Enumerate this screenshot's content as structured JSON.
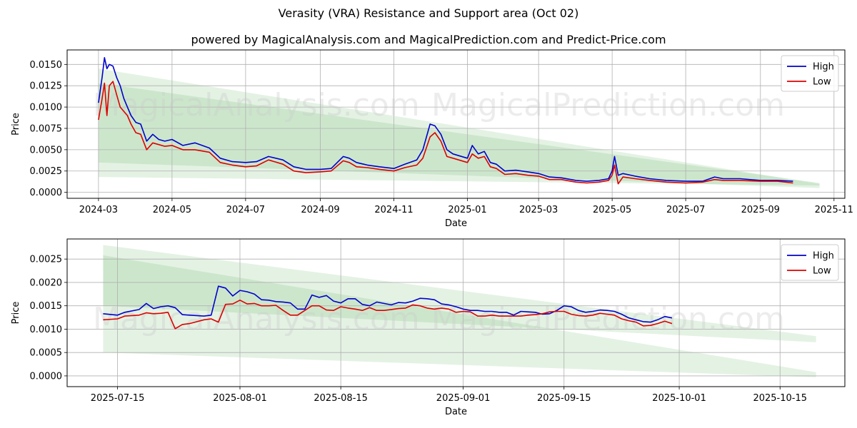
{
  "title": "Verasity (VRA) Resistance and Support area (Oct 02)",
  "subtitle": "powered by MagicalAnalysis.com and MagicalPrediction.com and Predict-Price.com",
  "watermarks": [
    "MagicalAnalysis.com",
    "MagicalPrediction.com"
  ],
  "colors": {
    "high": "#0000cc",
    "low": "#dd0000",
    "band": "#2e9b2e",
    "grid": "#b0b0b0"
  },
  "chart_data": [
    {
      "type": "line",
      "xlabel": "Date",
      "ylabel": "Price",
      "legend_position": "top-right",
      "grid": true,
      "xlim": [
        "2024-02-04",
        "2025-11-10"
      ],
      "ylim": [
        -0.0007,
        0.0167
      ],
      "x_ticks": [
        "2024-03",
        "2024-05",
        "2024-07",
        "2024-09",
        "2024-11",
        "2025-01",
        "2025-03",
        "2025-05",
        "2025-07",
        "2025-09",
        "2025-11"
      ],
      "x_tick_dates": [
        "2024-03-01",
        "2024-05-01",
        "2024-07-01",
        "2024-09-01",
        "2024-11-01",
        "2025-01-01",
        "2025-03-01",
        "2025-05-01",
        "2025-07-01",
        "2025-09-01",
        "2025-11-01"
      ],
      "y_ticks": [
        "0.0000",
        "0.0025",
        "0.0050",
        "0.0075",
        "0.0100",
        "0.0125",
        "0.0150"
      ],
      "y_tick_values": [
        0,
        0.0025,
        0.005,
        0.0075,
        0.01,
        0.0125,
        0.015
      ],
      "bands": [
        {
          "x": [
            "2024-03-01",
            "2025-10-20"
          ],
          "upper": [
            0.0145,
            0.001
          ],
          "lower": [
            0.0035,
            0.0005
          ]
        },
        {
          "x": [
            "2024-03-01",
            "2025-10-20"
          ],
          "upper": [
            0.0128,
            0.0011
          ],
          "lower": [
            0.0018,
            0.0008
          ]
        }
      ],
      "series": [
        {
          "name": "High",
          "x": [
            "2024-03-01",
            "2024-03-04",
            "2024-03-06",
            "2024-03-08",
            "2024-03-10",
            "2024-03-13",
            "2024-03-16",
            "2024-03-19",
            "2024-03-22",
            "2024-03-25",
            "2024-03-28",
            "2024-04-01",
            "2024-04-05",
            "2024-04-10",
            "2024-04-15",
            "2024-04-20",
            "2024-04-25",
            "2024-05-01",
            "2024-05-10",
            "2024-05-20",
            "2024-06-01",
            "2024-06-10",
            "2024-06-20",
            "2024-07-01",
            "2024-07-10",
            "2024-07-20",
            "2024-08-01",
            "2024-08-10",
            "2024-08-20",
            "2024-09-01",
            "2024-09-10",
            "2024-09-20",
            "2024-09-25",
            "2024-10-01",
            "2024-10-10",
            "2024-10-20",
            "2024-11-01",
            "2024-11-10",
            "2024-11-20",
            "2024-11-25",
            "2024-12-01",
            "2024-12-05",
            "2024-12-10",
            "2024-12-15",
            "2024-12-20",
            "2025-01-01",
            "2025-01-05",
            "2025-01-10",
            "2025-01-15",
            "2025-01-20",
            "2025-01-25",
            "2025-02-01",
            "2025-02-10",
            "2025-02-20",
            "2025-03-01",
            "2025-03-10",
            "2025-03-20",
            "2025-04-01",
            "2025-04-10",
            "2025-04-20",
            "2025-04-28",
            "2025-05-01",
            "2025-05-03",
            "2025-05-06",
            "2025-05-10",
            "2025-05-20",
            "2025-06-01",
            "2025-06-15",
            "2025-07-01",
            "2025-07-15",
            "2025-07-25",
            "2025-08-01",
            "2025-08-15",
            "2025-09-01",
            "2025-09-15",
            "2025-09-28"
          ],
          "values": [
            0.0105,
            0.0135,
            0.0158,
            0.0145,
            0.015,
            0.0148,
            0.0135,
            0.0125,
            0.011,
            0.01,
            0.009,
            0.0082,
            0.008,
            0.006,
            0.0068,
            0.0062,
            0.006,
            0.0062,
            0.0055,
            0.0058,
            0.0052,
            0.004,
            0.0036,
            0.0035,
            0.0036,
            0.0042,
            0.0038,
            0.003,
            0.0027,
            0.0027,
            0.0028,
            0.0042,
            0.004,
            0.0035,
            0.0032,
            0.003,
            0.0028,
            0.0033,
            0.0038,
            0.005,
            0.008,
            0.0078,
            0.0068,
            0.005,
            0.0045,
            0.004,
            0.0055,
            0.0045,
            0.0048,
            0.0035,
            0.0033,
            0.0025,
            0.0026,
            0.0024,
            0.0022,
            0.0018,
            0.0017,
            0.0014,
            0.0013,
            0.0014,
            0.0016,
            0.0025,
            0.0042,
            0.002,
            0.0022,
            0.0019,
            0.0016,
            0.0014,
            0.0013,
            0.0013,
            0.0018,
            0.0016,
            0.0016,
            0.0014,
            0.0014,
            0.0013
          ]
        },
        {
          "name": "Low",
          "x": [
            "2024-03-01",
            "2024-03-04",
            "2024-03-06",
            "2024-03-08",
            "2024-03-10",
            "2024-03-13",
            "2024-03-16",
            "2024-03-19",
            "2024-03-22",
            "2024-03-25",
            "2024-03-28",
            "2024-04-01",
            "2024-04-05",
            "2024-04-10",
            "2024-04-15",
            "2024-04-20",
            "2024-04-25",
            "2024-05-01",
            "2024-05-10",
            "2024-05-20",
            "2024-06-01",
            "2024-06-10",
            "2024-06-20",
            "2024-07-01",
            "2024-07-10",
            "2024-07-20",
            "2024-08-01",
            "2024-08-10",
            "2024-08-20",
            "2024-09-01",
            "2024-09-10",
            "2024-09-20",
            "2024-09-25",
            "2024-10-01",
            "2024-10-10",
            "2024-10-20",
            "2024-11-01",
            "2024-11-10",
            "2024-11-20",
            "2024-11-25",
            "2024-12-01",
            "2024-12-05",
            "2024-12-10",
            "2024-12-15",
            "2024-12-20",
            "2025-01-01",
            "2025-01-05",
            "2025-01-10",
            "2025-01-15",
            "2025-01-20",
            "2025-01-25",
            "2025-02-01",
            "2025-02-10",
            "2025-02-20",
            "2025-03-01",
            "2025-03-10",
            "2025-03-20",
            "2025-04-01",
            "2025-04-10",
            "2025-04-20",
            "2025-04-28",
            "2025-05-01",
            "2025-05-03",
            "2025-05-06",
            "2025-05-10",
            "2025-05-20",
            "2025-06-01",
            "2025-06-15",
            "2025-07-01",
            "2025-07-15",
            "2025-07-25",
            "2025-08-01",
            "2025-08-15",
            "2025-09-01",
            "2025-09-15",
            "2025-09-28"
          ],
          "values": [
            0.0085,
            0.011,
            0.0128,
            0.009,
            0.0125,
            0.013,
            0.0115,
            0.01,
            0.0095,
            0.009,
            0.008,
            0.007,
            0.0068,
            0.005,
            0.0058,
            0.0056,
            0.0054,
            0.0055,
            0.005,
            0.005,
            0.0047,
            0.0035,
            0.0032,
            0.003,
            0.0031,
            0.0038,
            0.0033,
            0.0025,
            0.0023,
            0.0024,
            0.0025,
            0.0037,
            0.0035,
            0.003,
            0.0029,
            0.0027,
            0.0025,
            0.0029,
            0.0032,
            0.004,
            0.0065,
            0.007,
            0.006,
            0.0042,
            0.004,
            0.0035,
            0.0045,
            0.004,
            0.0042,
            0.003,
            0.0028,
            0.0021,
            0.0022,
            0.002,
            0.0019,
            0.0015,
            0.0015,
            0.0012,
            0.0011,
            0.0012,
            0.0014,
            0.002,
            0.0032,
            0.001,
            0.0018,
            0.0016,
            0.0014,
            0.0012,
            0.0011,
            0.0012,
            0.0015,
            0.0014,
            0.0014,
            0.0013,
            0.0013,
            0.0011
          ]
        }
      ]
    },
    {
      "type": "line",
      "xlabel": "Date",
      "ylabel": "Price",
      "legend_position": "top-right",
      "grid": true,
      "xlim": [
        "2025-07-08",
        "2025-10-24"
      ],
      "ylim": [
        -0.00023,
        0.00293
      ],
      "x_ticks": [
        "2025-07-15",
        "2025-08-01",
        "2025-08-15",
        "2025-09-01",
        "2025-09-15",
        "2025-10-01",
        "2025-10-15"
      ],
      "x_tick_dates": [
        "2025-07-15",
        "2025-08-01",
        "2025-08-15",
        "2025-09-01",
        "2025-09-15",
        "2025-10-01",
        "2025-10-15"
      ],
      "y_ticks": [
        "0.0000",
        "0.0005",
        "0.0010",
        "0.0015",
        "0.0020",
        "0.0025"
      ],
      "y_tick_values": [
        0,
        0.0005,
        0.001,
        0.0015,
        0.002,
        0.0025
      ],
      "bands": [
        {
          "x": [
            "2025-07-13",
            "2025-10-20"
          ],
          "upper": [
            0.0028,
            0.00085
          ],
          "lower": [
            0.0015,
            0.00072
          ]
        },
        {
          "x": [
            "2025-07-13",
            "2025-10-20"
          ],
          "upper": [
            0.00258,
            8e-05
          ],
          "lower": [
            0.0005,
            -3e-05
          ]
        }
      ],
      "series": [
        {
          "name": "High",
          "x": [
            "2025-07-13",
            "2025-07-15",
            "2025-07-16",
            "2025-07-18",
            "2025-07-19",
            "2025-07-20",
            "2025-07-21",
            "2025-07-22",
            "2025-07-23",
            "2025-07-24",
            "2025-07-25",
            "2025-07-27",
            "2025-07-28",
            "2025-07-29",
            "2025-07-30",
            "2025-07-31",
            "2025-08-01",
            "2025-08-02",
            "2025-08-03",
            "2025-08-04",
            "2025-08-05",
            "2025-08-06",
            "2025-08-07",
            "2025-08-08",
            "2025-08-09",
            "2025-08-10",
            "2025-08-11",
            "2025-08-12",
            "2025-08-13",
            "2025-08-14",
            "2025-08-15",
            "2025-08-16",
            "2025-08-17",
            "2025-08-18",
            "2025-08-19",
            "2025-08-20",
            "2025-08-21",
            "2025-08-22",
            "2025-08-23",
            "2025-08-24",
            "2025-08-25",
            "2025-08-26",
            "2025-08-27",
            "2025-08-28",
            "2025-08-29",
            "2025-08-30",
            "2025-08-31",
            "2025-09-01",
            "2025-09-02",
            "2025-09-03",
            "2025-09-04",
            "2025-09-05",
            "2025-09-06",
            "2025-09-07",
            "2025-09-08",
            "2025-09-09",
            "2025-09-10",
            "2025-09-11",
            "2025-09-12",
            "2025-09-13",
            "2025-09-14",
            "2025-09-15",
            "2025-09-16",
            "2025-09-17",
            "2025-09-18",
            "2025-09-19",
            "2025-09-20",
            "2025-09-21",
            "2025-09-22",
            "2025-09-23",
            "2025-09-24",
            "2025-09-25",
            "2025-09-26",
            "2025-09-27",
            "2025-09-28",
            "2025-09-29",
            "2025-09-30"
          ],
          "values": [
            0.00133,
            0.0013,
            0.00136,
            0.00142,
            0.00155,
            0.00144,
            0.00148,
            0.0015,
            0.00146,
            0.00131,
            0.0013,
            0.00128,
            0.0013,
            0.00192,
            0.00188,
            0.00171,
            0.00183,
            0.0018,
            0.00175,
            0.00163,
            0.00162,
            0.00159,
            0.00158,
            0.00156,
            0.00143,
            0.00143,
            0.00173,
            0.00168,
            0.00172,
            0.0016,
            0.00156,
            0.00165,
            0.00165,
            0.00153,
            0.0015,
            0.00158,
            0.00155,
            0.00152,
            0.00157,
            0.00156,
            0.0016,
            0.00166,
            0.00165,
            0.00163,
            0.00154,
            0.00152,
            0.00148,
            0.00143,
            0.0014,
            0.0014,
            0.00138,
            0.00138,
            0.00136,
            0.00136,
            0.0013,
            0.00138,
            0.00137,
            0.00136,
            0.00132,
            0.00133,
            0.0014,
            0.0015,
            0.00148,
            0.0014,
            0.00136,
            0.00138,
            0.00141,
            0.0014,
            0.00138,
            0.00132,
            0.00124,
            0.0012,
            0.00116,
            0.00115,
            0.0012,
            0.00127,
            0.00124
          ]
        },
        {
          "name": "Low",
          "x": [
            "2025-07-13",
            "2025-07-15",
            "2025-07-16",
            "2025-07-18",
            "2025-07-19",
            "2025-07-20",
            "2025-07-21",
            "2025-07-22",
            "2025-07-23",
            "2025-07-24",
            "2025-07-25",
            "2025-07-27",
            "2025-07-28",
            "2025-07-29",
            "2025-07-30",
            "2025-07-31",
            "2025-08-01",
            "2025-08-02",
            "2025-08-03",
            "2025-08-04",
            "2025-08-05",
            "2025-08-06",
            "2025-08-07",
            "2025-08-08",
            "2025-08-09",
            "2025-08-10",
            "2025-08-11",
            "2025-08-12",
            "2025-08-13",
            "2025-08-14",
            "2025-08-15",
            "2025-08-16",
            "2025-08-17",
            "2025-08-18",
            "2025-08-19",
            "2025-08-20",
            "2025-08-21",
            "2025-08-22",
            "2025-08-23",
            "2025-08-24",
            "2025-08-25",
            "2025-08-26",
            "2025-08-27",
            "2025-08-28",
            "2025-08-29",
            "2025-08-30",
            "2025-08-31",
            "2025-09-01",
            "2025-09-02",
            "2025-09-03",
            "2025-09-04",
            "2025-09-05",
            "2025-09-06",
            "2025-09-07",
            "2025-09-08",
            "2025-09-09",
            "2025-09-10",
            "2025-09-11",
            "2025-09-12",
            "2025-09-13",
            "2025-09-14",
            "2025-09-15",
            "2025-09-16",
            "2025-09-17",
            "2025-09-18",
            "2025-09-19",
            "2025-09-20",
            "2025-09-21",
            "2025-09-22",
            "2025-09-23",
            "2025-09-24",
            "2025-09-25",
            "2025-09-26",
            "2025-09-27",
            "2025-09-28",
            "2025-09-29",
            "2025-09-30"
          ],
          "values": [
            0.0012,
            0.00122,
            0.00128,
            0.0013,
            0.00135,
            0.00133,
            0.00134,
            0.00136,
            0.00101,
            0.0011,
            0.00112,
            0.0012,
            0.00122,
            0.00115,
            0.00153,
            0.00154,
            0.00162,
            0.00154,
            0.00155,
            0.0015,
            0.0015,
            0.00151,
            0.0014,
            0.0013,
            0.0013,
            0.0014,
            0.0015,
            0.0015,
            0.00141,
            0.0014,
            0.00148,
            0.00145,
            0.00143,
            0.0014,
            0.00146,
            0.0014,
            0.0014,
            0.00142,
            0.00144,
            0.00145,
            0.00152,
            0.0015,
            0.00145,
            0.00143,
            0.00145,
            0.00143,
            0.00136,
            0.00138,
            0.00137,
            0.00128,
            0.00128,
            0.0013,
            0.00128,
            0.00128,
            0.00128,
            0.00128,
            0.0013,
            0.00131,
            0.00133,
            0.00137,
            0.00138,
            0.00138,
            0.00132,
            0.00129,
            0.00128,
            0.0013,
            0.00134,
            0.00132,
            0.0013,
            0.00122,
            0.00118,
            0.00115,
            0.00107,
            0.00108,
            0.00112,
            0.00117,
            0.00112
          ]
        }
      ]
    }
  ]
}
